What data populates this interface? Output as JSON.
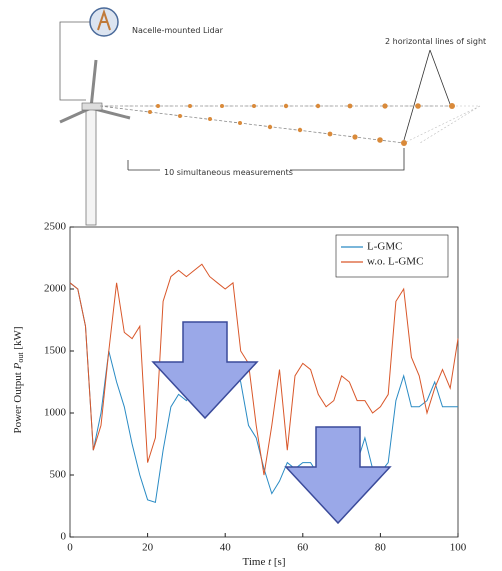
{
  "diagram": {
    "lidar_label": "Nacelle-mounted Lidar",
    "sight_label": "2 horizontal lines of sight",
    "measure_label": "10 simultaneous measurements"
  },
  "chart_data": {
    "type": "line",
    "x_label": "Time",
    "x_label_var": "t",
    "x_label_unit": "[s]",
    "y_label": "Power Output",
    "y_label_var": "P",
    "y_label_sub": "out",
    "y_label_unit": "[kW]",
    "x": [
      0,
      2,
      4,
      6,
      8,
      10,
      12,
      14,
      16,
      18,
      20,
      22,
      24,
      26,
      28,
      30,
      32,
      34,
      36,
      38,
      40,
      42,
      44,
      46,
      48,
      50,
      52,
      54,
      56,
      58,
      60,
      62,
      64,
      66,
      68,
      70,
      72,
      74,
      76,
      78,
      80,
      82,
      84,
      86,
      88,
      90,
      92,
      94,
      96,
      98,
      100
    ],
    "series": [
      {
        "name": "L-GMC",
        "color": "#2a8bc4",
        "values": [
          2050,
          2000,
          1700,
          700,
          1000,
          1500,
          1250,
          1050,
          750,
          500,
          300,
          280,
          700,
          1050,
          1150,
          1100,
          1200,
          1350,
          1250,
          1300,
          1400,
          1400,
          1250,
          900,
          800,
          550,
          350,
          450,
          600,
          550,
          600,
          600,
          500,
          450,
          450,
          550,
          450,
          600,
          800,
          550,
          520,
          600,
          1100,
          1300,
          1050,
          1050,
          1100,
          1250,
          1050,
          1050,
          1050
        ]
      },
      {
        "name": "w.o. L-GMC",
        "color": "#d9572a",
        "values": [
          2050,
          2000,
          1700,
          700,
          900,
          1500,
          2050,
          1650,
          1600,
          1700,
          600,
          800,
          1900,
          2100,
          2150,
          2100,
          2150,
          2200,
          2100,
          2050,
          2000,
          2050,
          1500,
          1400,
          900,
          500,
          900,
          1350,
          700,
          1300,
          1400,
          1350,
          1150,
          1050,
          1100,
          1300,
          1250,
          1100,
          1100,
          1000,
          1050,
          1150,
          1900,
          2000,
          1450,
          1300,
          1000,
          1200,
          1350,
          1200,
          1600
        ]
      }
    ],
    "xlim": [
      0,
      100
    ],
    "ylim": [
      0,
      2500
    ],
    "xticks": [
      0,
      20,
      40,
      60,
      80,
      100
    ],
    "yticks": [
      0,
      500,
      1000,
      1500,
      2000,
      2500
    ],
    "grid": false,
    "legend": "top-right"
  }
}
